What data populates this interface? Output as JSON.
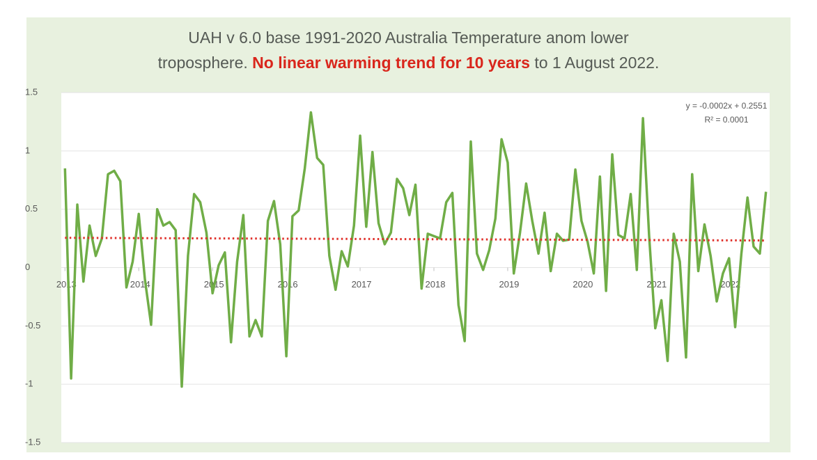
{
  "chart_data": {
    "type": "line",
    "title_line1": "UAH v 6.0 base 1991-2020 Australia Temperature anom  lower",
    "title_line2_start": "troposphere. ",
    "title_line2_highlight": "No linear warming trend for 10 years",
    "title_line2_end": " to 1 August 2022.",
    "color": "#70ad47",
    "x": [
      2013,
      2013.083,
      2013.167,
      2013.25,
      2013.333,
      2013.417,
      2013.5,
      2013.583,
      2013.667,
      2013.75,
      2013.833,
      2013.917,
      2014,
      2014.083,
      2014.167,
      2014.25,
      2014.333,
      2014.417,
      2014.5,
      2014.583,
      2014.667,
      2014.75,
      2014.833,
      2014.917,
      2015,
      2015.083,
      2015.167,
      2015.25,
      2015.333,
      2015.417,
      2015.5,
      2015.583,
      2015.667,
      2015.75,
      2015.833,
      2015.917,
      2016,
      2016.083,
      2016.167,
      2016.25,
      2016.333,
      2016.417,
      2016.5,
      2016.583,
      2016.667,
      2016.75,
      2016.833,
      2016.917,
      2017,
      2017.083,
      2017.167,
      2017.25,
      2017.333,
      2017.417,
      2017.5,
      2017.583,
      2017.667,
      2017.75,
      2017.833,
      2017.917,
      2018,
      2018.083,
      2018.167,
      2018.25,
      2018.333,
      2018.417,
      2018.5,
      2018.583,
      2018.667,
      2018.75,
      2018.833,
      2018.917,
      2019,
      2019.083,
      2019.167,
      2019.25,
      2019.333,
      2019.417,
      2019.5,
      2019.583,
      2019.667,
      2019.75,
      2019.833,
      2019.917,
      2020,
      2020.083,
      2020.167,
      2020.25,
      2020.333,
      2020.417,
      2020.5,
      2020.583,
      2020.667,
      2020.75,
      2020.833,
      2020.917,
      2021,
      2021.083,
      2021.167,
      2021.25,
      2021.333,
      2021.417,
      2021.5,
      2021.583,
      2021.667,
      2021.75,
      2021.833,
      2021.917,
      2022,
      2022.083,
      2022.167,
      2022.25,
      2022.333,
      2022.417,
      2022.5
    ],
    "values": [
      0.85,
      -0.95,
      0.54,
      -0.12,
      0.36,
      0.1,
      0.25,
      0.8,
      0.83,
      0.74,
      -0.17,
      0.05,
      0.46,
      -0.1,
      -0.49,
      0.5,
      0.36,
      0.39,
      0.32,
      -1.02,
      0.1,
      0.63,
      0.56,
      0.3,
      -0.22,
      0.02,
      0.13,
      -0.64,
      0.05,
      0.45,
      -0.59,
      -0.45,
      -0.59,
      0.4,
      0.57,
      0.2,
      -0.76,
      0.44,
      0.49,
      0.85,
      1.33,
      0.94,
      0.88,
      0.1,
      -0.19,
      0.14,
      0.01,
      0.36,
      1.13,
      0.35,
      0.99,
      0.38,
      0.2,
      0.3,
      0.76,
      0.68,
      0.45,
      0.71,
      -0.18,
      0.29,
      0.27,
      0.25,
      0.56,
      0.64,
      -0.32,
      -0.63,
      1.08,
      0.12,
      -0.02,
      0.15,
      0.42,
      1.1,
      0.9,
      -0.05,
      0.3,
      0.72,
      0.4,
      0.12,
      0.47,
      -0.03,
      0.29,
      0.23,
      0.24,
      0.84,
      0.4,
      0.22,
      -0.05,
      0.78,
      -0.2,
      0.97,
      0.28,
      0.25,
      0.63,
      -0.02,
      1.28,
      0.27,
      -0.52,
      -0.28,
      -0.8,
      0.29,
      0.05,
      -0.77,
      0.8,
      -0.03,
      0.37,
      0.1,
      -0.29,
      -0.05,
      0.08,
      -0.51,
      0.12,
      0.6,
      0.18,
      0.12,
      0.65
    ],
    "xlim": [
      2012.95,
      2022.55
    ],
    "xticks": [
      2013,
      2014,
      2015,
      2016,
      2017,
      2018,
      2019,
      2020,
      2021,
      2022
    ],
    "ylim": [
      -1.5,
      1.5
    ],
    "yticks": [
      1.5,
      1,
      0.5,
      0,
      -0.5,
      -1,
      -1.5
    ],
    "grid": true,
    "trendline": {
      "slope": -0.0002,
      "intercept": 0.2551,
      "color": "#e0302a",
      "equation": "y = -0.0002x + 0.2551",
      "r2": "R² = 0.0001"
    }
  }
}
